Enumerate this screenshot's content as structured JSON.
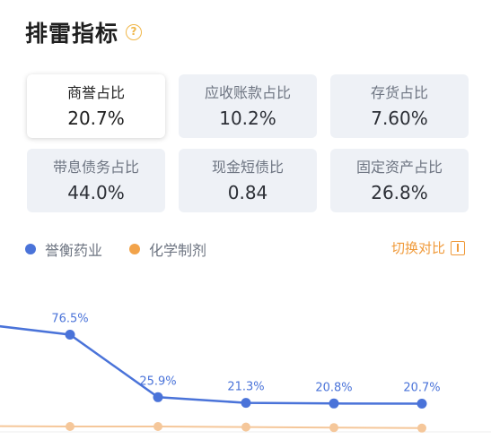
{
  "header": {
    "title": "排雷指标",
    "help_icon": "?"
  },
  "cards": [
    {
      "label": "商誉占比",
      "value": "20.7%",
      "active": true
    },
    {
      "label": "应收账款占比",
      "value": "10.2%",
      "active": false
    },
    {
      "label": "存货占比",
      "value": "7.60%",
      "active": false
    },
    {
      "label": "带息债务占比",
      "value": "44.0%",
      "active": false
    },
    {
      "label": "现金短债比",
      "value": "0.84",
      "active": false
    },
    {
      "label": "固定资产占比",
      "value": "26.8%",
      "active": false
    }
  ],
  "legend": {
    "items": [
      {
        "name": "誉衡药业",
        "color": "#4a73d9"
      },
      {
        "name": "化学制剂",
        "color": "#f2a34a"
      }
    ],
    "switch_label": "切换对比"
  },
  "chart_data": {
    "type": "line",
    "series": [
      {
        "name": "誉衡药业",
        "color": "#4a73d9",
        "values": [
          null,
          76.5,
          25.9,
          21.3,
          20.8,
          20.7
        ],
        "labels": [
          "",
          "76.5%",
          "25.9%",
          "21.3%",
          "20.8%",
          "20.7%"
        ]
      },
      {
        "name": "化学制剂",
        "color": "#f5c79a",
        "values": [
          null,
          1.5,
          1.5,
          1.0,
          0.5,
          0.0
        ]
      }
    ]
  }
}
